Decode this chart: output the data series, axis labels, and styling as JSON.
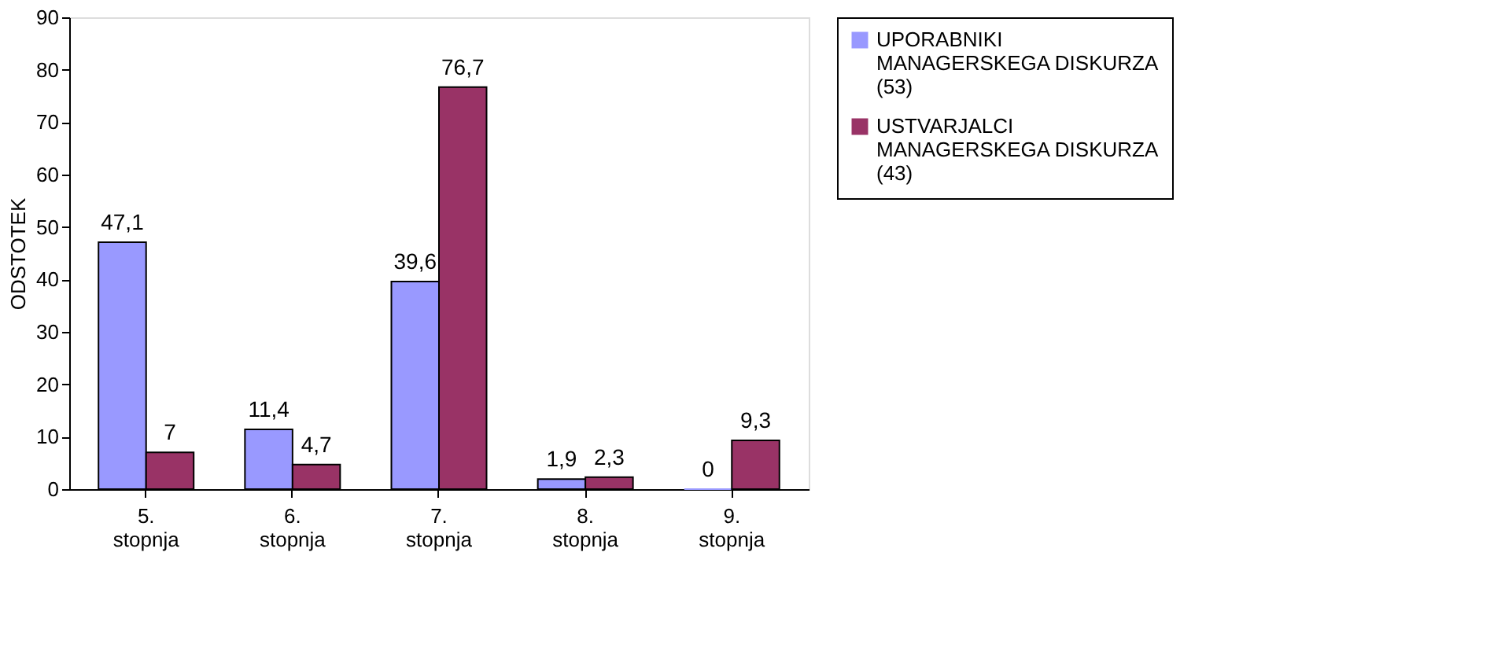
{
  "chart_data": {
    "type": "bar",
    "ylabel": "ODSTOTEK",
    "categories": [
      "5. stopnja",
      "6. stopnja",
      "7. stopnja",
      "8. stopnja",
      "9. stopnja"
    ],
    "series": [
      {
        "name": "UPORABNIKI MANAGERSKEGA DISKURZA (53)",
        "color": "#9999ff",
        "values": [
          47.1,
          11.4,
          39.6,
          1.9,
          0
        ],
        "value_labels": [
          "47,1",
          "11,4",
          "39,6",
          "1,9",
          "0"
        ]
      },
      {
        "name": "USTVARJALCI MANAGERSKEGA DISKURZA (43)",
        "color": "#993366",
        "values": [
          7,
          4.7,
          76.7,
          2.3,
          9.3
        ],
        "value_labels": [
          "7",
          "4,7",
          "76,7",
          "2,3",
          "9,3"
        ]
      }
    ],
    "ylim": [
      0,
      90
    ],
    "yticks": [
      0,
      10,
      20,
      30,
      40,
      50,
      60,
      70,
      80,
      90
    ],
    "grid": false,
    "legend": "right"
  }
}
